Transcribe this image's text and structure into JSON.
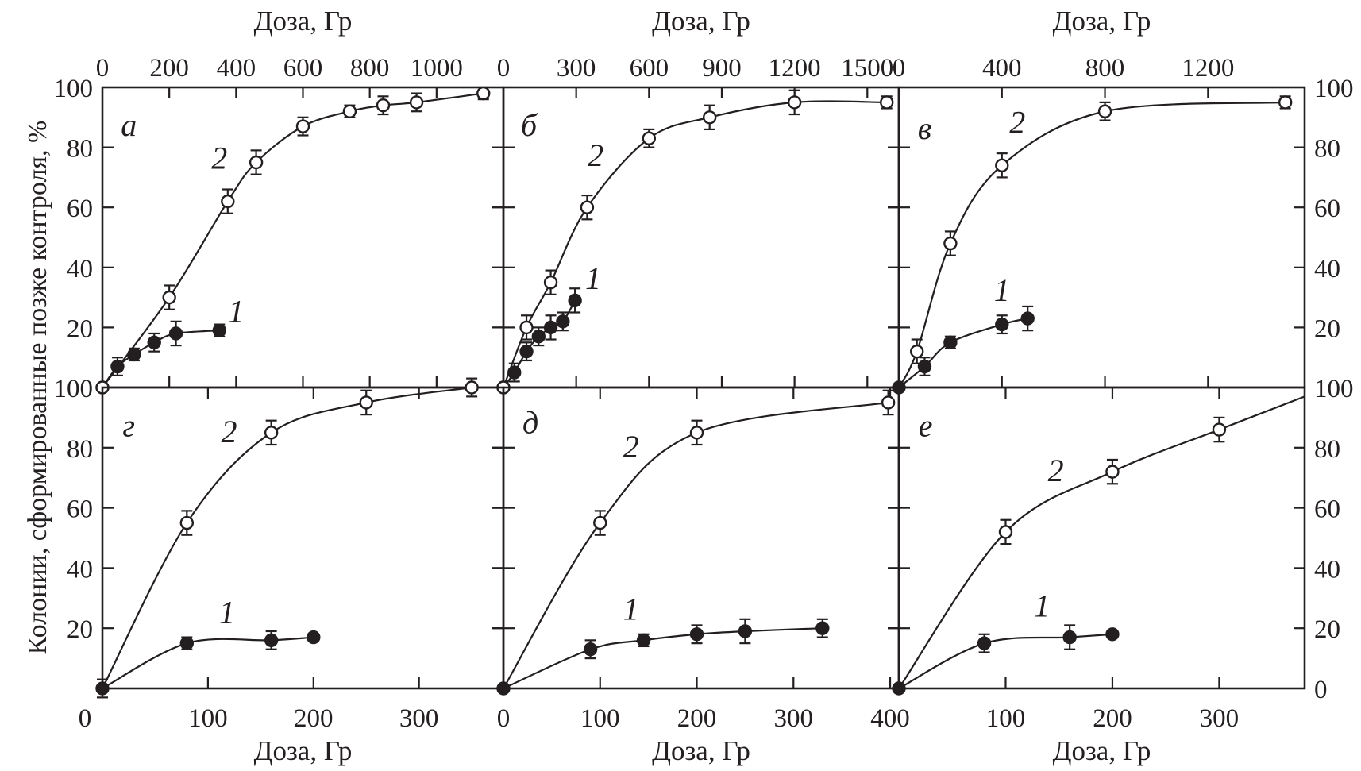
{
  "figure": {
    "y_axis_label": "Колонии, сформированные позже контроля, %",
    "colors": {
      "ink": "#231f20",
      "background": "#ffffff"
    }
  },
  "chart_data": [
    {
      "panel": "а",
      "type": "line",
      "xlabel": "Доза, Гр",
      "xlabel_position": "top",
      "ylabel": "Колонии, сформированные позже контроля, %",
      "xlim": [
        0,
        1200
      ],
      "ylim": [
        0,
        100
      ],
      "x_tick_values": [
        0,
        200,
        400,
        600,
        800,
        1000
      ],
      "x_tick_labels": [
        "0",
        "200",
        "400",
        "600",
        "800",
        "1000"
      ],
      "y_side": "left",
      "y_tick_values": [
        100,
        80,
        60,
        40,
        20
      ],
      "y_tick_labels": [
        "100",
        "80",
        "60",
        "40",
        "20"
      ],
      "series": [
        {
          "name": "1",
          "marker": "filled",
          "points": [
            {
              "x": 0,
              "y": 0,
              "err": 0
            },
            {
              "x": 45,
              "y": 7,
              "err": 3
            },
            {
              "x": 95,
              "y": 11,
              "err": 2
            },
            {
              "x": 155,
              "y": 15,
              "err": 3
            },
            {
              "x": 220,
              "y": 18,
              "err": 4
            },
            {
              "x": 350,
              "y": 19,
              "err": 2
            }
          ]
        },
        {
          "name": "2",
          "marker": "open",
          "points": [
            {
              "x": 0,
              "y": 0,
              "err": 0
            },
            {
              "x": 200,
              "y": 30,
              "err": 4
            },
            {
              "x": 375,
              "y": 62,
              "err": 4
            },
            {
              "x": 460,
              "y": 75,
              "err": 4
            },
            {
              "x": 600,
              "y": 87,
              "err": 3
            },
            {
              "x": 740,
              "y": 92,
              "err": 2
            },
            {
              "x": 840,
              "y": 94,
              "err": 3
            },
            {
              "x": 940,
              "y": 95,
              "err": 3
            },
            {
              "x": 1140,
              "y": 98,
              "err": 2
            }
          ]
        }
      ],
      "annotations": [
        {
          "text": "а",
          "x": 79,
          "y": 87,
          "role": "panel-letter"
        },
        {
          "text": "2",
          "x": 350,
          "y": 76,
          "role": "curve-label"
        },
        {
          "text": "1",
          "x": 400,
          "y": 25,
          "role": "curve-label"
        }
      ]
    },
    {
      "panel": "б",
      "type": "line",
      "xlabel": "Доза, Гр",
      "xlabel_position": "top",
      "xlim": [
        0,
        1630
      ],
      "ylim": [
        0,
        100
      ],
      "x_tick_values": [
        0,
        300,
        600,
        900,
        1200,
        1500
      ],
      "x_tick_labels": [
        "0",
        "300",
        "600",
        "900",
        "1200",
        "1500"
      ],
      "y_side": "none",
      "y_tick_values": [],
      "y_tick_labels": [],
      "series": [
        {
          "name": "1",
          "marker": "filled",
          "points": [
            {
              "x": 0,
              "y": 0,
              "err": 0
            },
            {
              "x": 45,
              "y": 5,
              "err": 3
            },
            {
              "x": 95,
              "y": 12,
              "err": 3
            },
            {
              "x": 145,
              "y": 17,
              "err": 3
            },
            {
              "x": 195,
              "y": 20,
              "err": 4
            },
            {
              "x": 245,
              "y": 22,
              "err": 3
            },
            {
              "x": 295,
              "y": 29,
              "err": 4
            }
          ]
        },
        {
          "name": "2",
          "marker": "open",
          "points": [
            {
              "x": 0,
              "y": 0,
              "err": 0
            },
            {
              "x": 95,
              "y": 20,
              "err": 4
            },
            {
              "x": 195,
              "y": 35,
              "err": 4
            },
            {
              "x": 345,
              "y": 60,
              "err": 4
            },
            {
              "x": 600,
              "y": 83,
              "err": 3
            },
            {
              "x": 850,
              "y": 90,
              "err": 4
            },
            {
              "x": 1200,
              "y": 95,
              "err": 4
            },
            {
              "x": 1580,
              "y": 95,
              "err": 2
            }
          ]
        }
      ],
      "annotations": [
        {
          "text": "б",
          "x": 105,
          "y": 87,
          "role": "panel-letter"
        },
        {
          "text": "2",
          "x": 380,
          "y": 77,
          "role": "curve-label"
        },
        {
          "text": "1",
          "x": 370,
          "y": 36,
          "role": "curve-label"
        }
      ]
    },
    {
      "panel": "в",
      "type": "line",
      "xlabel": "Доза, Гр",
      "xlabel_position": "top",
      "xlim": [
        0,
        1575
      ],
      "ylim": [
        0,
        100
      ],
      "x_tick_values": [
        0,
        400,
        800,
        1200
      ],
      "x_tick_labels": [
        "0",
        "400",
        "800",
        "1200"
      ],
      "y_side": "right",
      "y_tick_values": [
        100,
        80,
        60,
        40,
        20
      ],
      "y_tick_labels": [
        "100",
        "80",
        "60",
        "40",
        "20"
      ],
      "series": [
        {
          "name": "1",
          "marker": "filled",
          "points": [
            {
              "x": 0,
              "y": 0,
              "err": 0
            },
            {
              "x": 100,
              "y": 7,
              "err": 3
            },
            {
              "x": 200,
              "y": 15,
              "err": 2
            },
            {
              "x": 400,
              "y": 21,
              "err": 3
            },
            {
              "x": 500,
              "y": 23,
              "err": 4
            }
          ]
        },
        {
          "name": "2",
          "marker": "open",
          "points": [
            {
              "x": 70,
              "y": 12,
              "err": 4
            },
            {
              "x": 200,
              "y": 48,
              "err": 4
            },
            {
              "x": 400,
              "y": 74,
              "err": 4
            },
            {
              "x": 800,
              "y": 92,
              "err": 3
            },
            {
              "x": 1500,
              "y": 95,
              "err": 2
            }
          ],
          "line_start": {
            "x": 0,
            "y": 0
          }
        }
      ],
      "annotations": [
        {
          "text": "в",
          "x": 100,
          "y": 86,
          "role": "panel-letter"
        },
        {
          "text": "2",
          "x": 460,
          "y": 88,
          "role": "curve-label"
        },
        {
          "text": "1",
          "x": 400,
          "y": 32,
          "role": "curve-label"
        }
      ]
    },
    {
      "panel": "г",
      "type": "line",
      "xlabel": "Доза, Гр",
      "xlabel_position": "bottom",
      "xlim": [
        0,
        380
      ],
      "ylim": [
        0,
        100
      ],
      "x_tick_values": [
        0,
        100,
        200,
        300
      ],
      "x_tick_labels": [
        "0",
        "100",
        "200",
        "300"
      ],
      "y_side": "left",
      "y_tick_values": [
        100,
        80,
        60,
        40,
        20
      ],
      "y_tick_labels": [
        "100",
        "80",
        "60",
        "40",
        "20"
      ],
      "series": [
        {
          "name": "1",
          "marker": "filled",
          "points": [
            {
              "x": 0,
              "y": 0,
              "err": 3
            },
            {
              "x": 80,
              "y": 15,
              "err": 2
            },
            {
              "x": 160,
              "y": 16,
              "err": 3
            },
            {
              "x": 200,
              "y": 17,
              "err": 0
            }
          ]
        },
        {
          "name": "2",
          "marker": "open",
          "points": [
            {
              "x": 80,
              "y": 55,
              "err": 4
            },
            {
              "x": 160,
              "y": 85,
              "err": 4
            },
            {
              "x": 250,
              "y": 95,
              "err": 4
            },
            {
              "x": 350,
              "y": 100,
              "err": 3
            }
          ],
          "line_start": {
            "x": 0,
            "y": 0
          }
        }
      ],
      "annotations": [
        {
          "text": "г",
          "x": 25,
          "y": 87,
          "role": "panel-letter"
        },
        {
          "text": "2",
          "x": 120,
          "y": 85,
          "role": "curve-label"
        },
        {
          "text": "1",
          "x": 118,
          "y": 25,
          "role": "curve-label"
        }
      ]
    },
    {
      "panel": "д",
      "type": "line",
      "xlabel": "Доза, Гр",
      "xlabel_position": "bottom",
      "xlim": [
        0,
        409
      ],
      "ylim": [
        0,
        100
      ],
      "x_tick_values": [
        0,
        100,
        200,
        300,
        400
      ],
      "x_tick_labels": [
        "0",
        "100",
        "200",
        "300",
        "400"
      ],
      "y_side": "none",
      "y_tick_values": [],
      "y_tick_labels": [],
      "series": [
        {
          "name": "1",
          "marker": "filled",
          "points": [
            {
              "x": 0,
              "y": 0,
              "err": 0
            },
            {
              "x": 90,
              "y": 13,
              "err": 3
            },
            {
              "x": 145,
              "y": 16,
              "err": 2
            },
            {
              "x": 200,
              "y": 18,
              "err": 3
            },
            {
              "x": 250,
              "y": 19,
              "err": 4
            },
            {
              "x": 330,
              "y": 20,
              "err": 3
            }
          ]
        },
        {
          "name": "2",
          "marker": "open",
          "points": [
            {
              "x": 100,
              "y": 55,
              "err": 4
            },
            {
              "x": 200,
              "y": 85,
              "err": 4
            },
            {
              "x": 398,
              "y": 95,
              "err": 4
            }
          ],
          "line_start": {
            "x": 0,
            "y": 0
          }
        }
      ],
      "annotations": [
        {
          "text": "д",
          "x": 28,
          "y": 88,
          "role": "panel-letter"
        },
        {
          "text": "2",
          "x": 132,
          "y": 80,
          "role": "curve-label"
        },
        {
          "text": "1",
          "x": 132,
          "y": 26,
          "role": "curve-label"
        }
      ]
    },
    {
      "panel": "е",
      "type": "line",
      "xlabel": "Доза, Гр",
      "xlabel_position": "bottom",
      "xlim": [
        0,
        380
      ],
      "ylim": [
        0,
        100
      ],
      "x_tick_values": [
        100,
        200,
        300
      ],
      "x_tick_labels": [
        "100",
        "200",
        "300"
      ],
      "y_side": "right",
      "y_tick_values": [
        100,
        80,
        60,
        40,
        20,
        0
      ],
      "y_tick_labels": [
        "100",
        "80",
        "60",
        "40",
        "20",
        "0"
      ],
      "series": [
        {
          "name": "1",
          "marker": "filled",
          "points": [
            {
              "x": 0,
              "y": 0,
              "err": 0
            },
            {
              "x": 80,
              "y": 15,
              "err": 3
            },
            {
              "x": 160,
              "y": 17,
              "err": 4
            },
            {
              "x": 200,
              "y": 18,
              "err": 0
            }
          ]
        },
        {
          "name": "2",
          "marker": "open",
          "points": [
            {
              "x": 100,
              "y": 52,
              "err": 4
            },
            {
              "x": 200,
              "y": 72,
              "err": 4
            },
            {
              "x": 300,
              "y": 86,
              "err": 4
            }
          ],
          "line_start": {
            "x": 0,
            "y": 0
          },
          "line_end": {
            "x": 380,
            "y": 97
          }
        }
      ],
      "annotations": [
        {
          "text": "е",
          "x": 25,
          "y": 87,
          "role": "panel-letter"
        },
        {
          "text": "2",
          "x": 147,
          "y": 72,
          "role": "curve-label"
        },
        {
          "text": "1",
          "x": 134,
          "y": 27,
          "role": "curve-label"
        }
      ]
    }
  ]
}
